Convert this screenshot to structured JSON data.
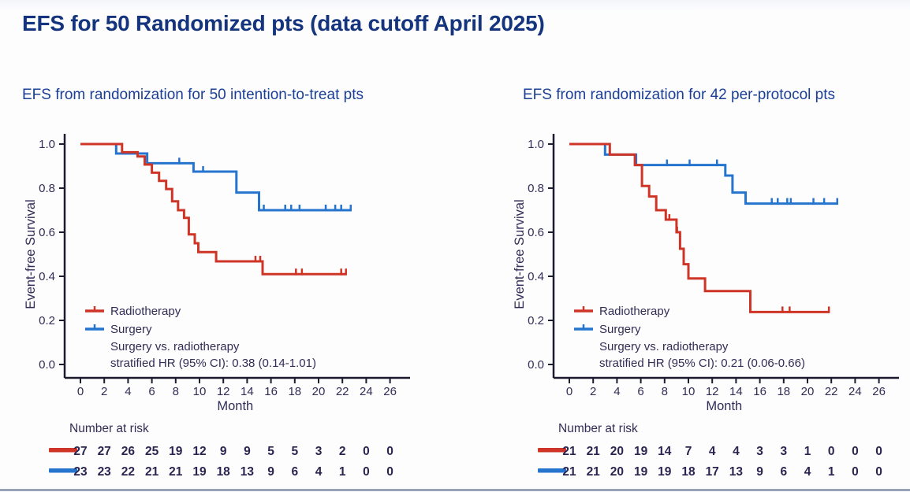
{
  "page": {
    "title": "EFS for 50 Randomized pts (data cutoff April 2025)",
    "accent_navy": "#14347e",
    "subtitle_navy": "#1c3f96",
    "radiotherapy_red": "#cf3527",
    "surgery_blue": "#2574cd"
  },
  "chart_data": [
    {
      "type": "line",
      "subtype": "kaplan-meier-step",
      "title": "EFS from randomization for 50 intention-to-treat pts",
      "xlabel": "Month",
      "ylabel": "Event-free Survival",
      "xlim": [
        0,
        26
      ],
      "ylim": [
        0.0,
        1.0
      ],
      "xticks": [
        0,
        2,
        4,
        6,
        8,
        10,
        12,
        14,
        16,
        18,
        20,
        22,
        24,
        26
      ],
      "yticks": [
        1.0,
        0.8,
        0.6,
        0.4,
        0.2,
        0.0
      ],
      "grid": false,
      "legend_position": "lower-left-inside",
      "legend": [
        {
          "label": "Radiotherapy",
          "color": "#cf3527"
        },
        {
          "label": "Surgery",
          "color": "#2574cd"
        }
      ],
      "annotation": [
        "Surgery vs. radiotherapy",
        "stratified HR (95% CI): 0.38 (0.14-1.01)"
      ],
      "series": [
        {
          "name": "Radiotherapy",
          "color": "#cf3527",
          "steps": [
            [
              0,
              1.0
            ],
            [
              3.5,
              1.0
            ],
            [
              3.5,
              0.963
            ],
            [
              4.8,
              0.963
            ],
            [
              4.8,
              0.944
            ],
            [
              5.4,
              0.944
            ],
            [
              5.4,
              0.907
            ],
            [
              6.0,
              0.907
            ],
            [
              6.0,
              0.87
            ],
            [
              6.6,
              0.87
            ],
            [
              6.6,
              0.833
            ],
            [
              7.2,
              0.833
            ],
            [
              7.2,
              0.796
            ],
            [
              7.7,
              0.796
            ],
            [
              7.7,
              0.74
            ],
            [
              8.2,
              0.74
            ],
            [
              8.2,
              0.7
            ],
            [
              8.7,
              0.7
            ],
            [
              8.7,
              0.665
            ],
            [
              9.1,
              0.665
            ],
            [
              9.1,
              0.59
            ],
            [
              9.6,
              0.59
            ],
            [
              9.6,
              0.55
            ],
            [
              9.9,
              0.55
            ],
            [
              9.9,
              0.51
            ],
            [
              11.4,
              0.51
            ],
            [
              11.4,
              0.468
            ],
            [
              15.3,
              0.468
            ],
            [
              15.3,
              0.41
            ],
            [
              22.3,
              0.41
            ]
          ],
          "censors": [
            [
              14.7,
              0.468
            ],
            [
              15.1,
              0.468
            ],
            [
              18.1,
              0.41
            ],
            [
              18.6,
              0.41
            ],
            [
              21.9,
              0.41
            ],
            [
              22.3,
              0.41
            ]
          ]
        },
        {
          "name": "Surgery",
          "color": "#2574cd",
          "steps": [
            [
              0,
              1.0
            ],
            [
              3.0,
              1.0
            ],
            [
              3.0,
              0.957
            ],
            [
              5.6,
              0.957
            ],
            [
              5.6,
              0.913
            ],
            [
              9.5,
              0.913
            ],
            [
              9.5,
              0.875
            ],
            [
              13.1,
              0.875
            ],
            [
              13.1,
              0.78
            ],
            [
              15.0,
              0.78
            ],
            [
              15.0,
              0.7
            ],
            [
              22.7,
              0.7
            ]
          ],
          "censors": [
            [
              8.3,
              0.913
            ],
            [
              10.3,
              0.875
            ],
            [
              15.4,
              0.7
            ],
            [
              17.2,
              0.7
            ],
            [
              17.7,
              0.7
            ],
            [
              18.4,
              0.7
            ],
            [
              20.6,
              0.7
            ],
            [
              21.4,
              0.7
            ],
            [
              21.9,
              0.7
            ],
            [
              22.7,
              0.7
            ]
          ]
        }
      ],
      "risk_table": {
        "label": "Number at risk",
        "months": [
          0,
          2,
          4,
          6,
          8,
          10,
          12,
          14,
          16,
          18,
          20,
          22,
          24,
          26
        ],
        "rows": [
          {
            "name": "Radiotherapy",
            "color": "#cf3527",
            "values": [
              27,
              27,
              26,
              25,
              19,
              12,
              9,
              9,
              5,
              5,
              3,
              2,
              0,
              0
            ]
          },
          {
            "name": "Surgery",
            "color": "#2574cd",
            "values": [
              23,
              23,
              22,
              21,
              21,
              19,
              18,
              13,
              9,
              6,
              4,
              1,
              0,
              0
            ]
          }
        ]
      }
    },
    {
      "type": "line",
      "subtype": "kaplan-meier-step",
      "title": "EFS from randomization for 42 per-protocol pts",
      "xlabel": "Month",
      "ylabel": "Event-free Survival",
      "xlim": [
        0,
        26
      ],
      "ylim": [
        0.0,
        1.0
      ],
      "xticks": [
        0,
        2,
        4,
        6,
        8,
        10,
        12,
        14,
        16,
        18,
        20,
        22,
        24,
        26
      ],
      "yticks": [
        1.0,
        0.8,
        0.6,
        0.4,
        0.2,
        0.0
      ],
      "grid": false,
      "legend_position": "lower-left-inside",
      "legend": [
        {
          "label": "Radiotherapy",
          "color": "#cf3527"
        },
        {
          "label": "Surgery",
          "color": "#2574cd"
        }
      ],
      "annotation": [
        "Surgery vs. radiotherapy",
        "stratified HR (95% CI): 0.21 (0.06-0.66)"
      ],
      "series": [
        {
          "name": "Radiotherapy",
          "color": "#cf3527",
          "steps": [
            [
              0,
              1.0
            ],
            [
              3.4,
              1.0
            ],
            [
              3.4,
              0.952
            ],
            [
              5.5,
              0.952
            ],
            [
              5.5,
              0.905
            ],
            [
              6.1,
              0.905
            ],
            [
              6.1,
              0.81
            ],
            [
              6.7,
              0.81
            ],
            [
              6.7,
              0.762
            ],
            [
              7.3,
              0.762
            ],
            [
              7.3,
              0.7
            ],
            [
              8.1,
              0.7
            ],
            [
              8.1,
              0.657
            ],
            [
              9.0,
              0.657
            ],
            [
              9.0,
              0.6
            ],
            [
              9.3,
              0.6
            ],
            [
              9.3,
              0.525
            ],
            [
              9.6,
              0.525
            ],
            [
              9.6,
              0.455
            ],
            [
              10.0,
              0.455
            ],
            [
              10.0,
              0.39
            ],
            [
              11.4,
              0.39
            ],
            [
              11.4,
              0.333
            ],
            [
              15.2,
              0.333
            ],
            [
              15.2,
              0.238
            ],
            [
              21.8,
              0.238
            ]
          ],
          "censors": [
            [
              8.4,
              0.657
            ],
            [
              9.05,
              0.6
            ],
            [
              17.9,
              0.238
            ],
            [
              18.5,
              0.238
            ],
            [
              21.8,
              0.238
            ]
          ]
        },
        {
          "name": "Surgery",
          "color": "#2574cd",
          "steps": [
            [
              0,
              1.0
            ],
            [
              3.0,
              1.0
            ],
            [
              3.0,
              0.952
            ],
            [
              5.6,
              0.952
            ],
            [
              5.6,
              0.905
            ],
            [
              13.1,
              0.905
            ],
            [
              13.1,
              0.857
            ],
            [
              13.7,
              0.857
            ],
            [
              13.7,
              0.78
            ],
            [
              14.8,
              0.78
            ],
            [
              14.8,
              0.73
            ],
            [
              22.5,
              0.73
            ]
          ],
          "censors": [
            [
              8.2,
              0.905
            ],
            [
              10.1,
              0.905
            ],
            [
              12.4,
              0.905
            ],
            [
              17.0,
              0.73
            ],
            [
              17.5,
              0.73
            ],
            [
              18.3,
              0.73
            ],
            [
              18.6,
              0.73
            ],
            [
              20.5,
              0.73
            ],
            [
              21.4,
              0.73
            ],
            [
              22.5,
              0.73
            ]
          ]
        }
      ],
      "risk_table": {
        "label": "Number at risk",
        "months": [
          0,
          2,
          4,
          6,
          8,
          10,
          12,
          14,
          16,
          18,
          20,
          22,
          24,
          26
        ],
        "rows": [
          {
            "name": "Radiotherapy",
            "color": "#cf3527",
            "values": [
              21,
              21,
              20,
              19,
              14,
              7,
              4,
              4,
              3,
              3,
              1,
              0,
              0,
              0
            ]
          },
          {
            "name": "Surgery",
            "color": "#2574cd",
            "values": [
              21,
              21,
              20,
              19,
              19,
              18,
              17,
              13,
              9,
              6,
              4,
              1,
              0,
              0
            ]
          }
        ]
      }
    }
  ]
}
